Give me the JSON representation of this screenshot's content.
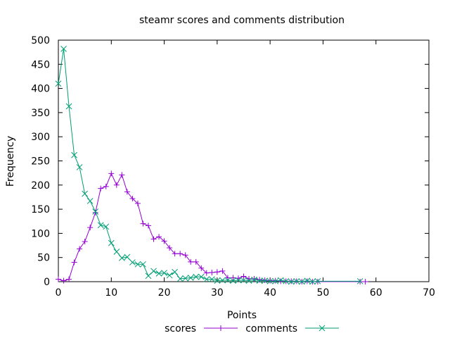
{
  "chart_data": {
    "type": "line",
    "title": "steamr scores and comments distribution",
    "xlabel": "Points",
    "ylabel": "Frequency",
    "xlim": [
      0,
      70
    ],
    "ylim": [
      0,
      500
    ],
    "xticks": [
      0,
      10,
      20,
      30,
      40,
      50,
      60,
      70
    ],
    "yticks": [
      0,
      50,
      100,
      150,
      200,
      250,
      300,
      350,
      400,
      450,
      500
    ],
    "grid": false,
    "legend_position": "bottom-center",
    "series": [
      {
        "name": "scores",
        "color": "#9400d3",
        "marker": "plus",
        "points": [
          [
            0,
            5
          ],
          [
            1,
            2
          ],
          [
            2,
            5
          ],
          [
            3,
            40
          ],
          [
            4,
            68
          ],
          [
            5,
            83
          ],
          [
            6,
            112
          ],
          [
            7,
            143
          ],
          [
            8,
            193
          ],
          [
            9,
            197
          ],
          [
            10,
            224
          ],
          [
            11,
            200
          ],
          [
            12,
            221
          ],
          [
            13,
            186
          ],
          [
            14,
            172
          ],
          [
            15,
            162
          ],
          [
            16,
            120
          ],
          [
            17,
            116
          ],
          [
            18,
            88
          ],
          [
            19,
            93
          ],
          [
            20,
            84
          ],
          [
            21,
            70
          ],
          [
            22,
            58
          ],
          [
            23,
            58
          ],
          [
            24,
            55
          ],
          [
            25,
            41
          ],
          [
            26,
            41
          ],
          [
            27,
            28
          ],
          [
            28,
            18
          ],
          [
            29,
            19
          ],
          [
            30,
            20
          ],
          [
            31,
            22
          ],
          [
            32,
            8
          ],
          [
            33,
            8
          ],
          [
            34,
            7
          ],
          [
            35,
            11
          ],
          [
            36,
            6
          ],
          [
            37,
            6
          ],
          [
            38,
            4
          ],
          [
            39,
            3
          ],
          [
            40,
            2
          ],
          [
            41,
            2
          ],
          [
            42,
            1
          ],
          [
            43,
            1
          ],
          [
            44,
            1
          ],
          [
            45,
            1
          ],
          [
            46,
            0
          ],
          [
            47,
            1
          ],
          [
            48,
            0
          ],
          [
            49,
            0
          ],
          [
            57,
            0
          ],
          [
            58,
            0
          ]
        ]
      },
      {
        "name": "comments",
        "color": "#009e73",
        "marker": "cross",
        "points": [
          [
            0,
            410
          ],
          [
            1,
            482
          ],
          [
            2,
            363
          ],
          [
            3,
            262
          ],
          [
            4,
            237
          ],
          [
            5,
            182
          ],
          [
            6,
            167
          ],
          [
            7,
            145
          ],
          [
            8,
            117
          ],
          [
            9,
            114
          ],
          [
            10,
            80
          ],
          [
            11,
            62
          ],
          [
            12,
            49
          ],
          [
            13,
            51
          ],
          [
            14,
            40
          ],
          [
            15,
            36
          ],
          [
            16,
            36
          ],
          [
            17,
            12
          ],
          [
            18,
            22
          ],
          [
            19,
            17
          ],
          [
            20,
            18
          ],
          [
            21,
            13
          ],
          [
            22,
            20
          ],
          [
            23,
            6
          ],
          [
            24,
            7
          ],
          [
            25,
            8
          ],
          [
            26,
            10
          ],
          [
            27,
            10
          ],
          [
            28,
            5
          ],
          [
            29,
            5
          ],
          [
            30,
            2
          ],
          [
            31,
            3
          ],
          [
            32,
            3
          ],
          [
            33,
            2
          ],
          [
            34,
            3
          ],
          [
            35,
            3
          ],
          [
            36,
            2
          ],
          [
            37,
            4
          ],
          [
            38,
            2
          ],
          [
            39,
            2
          ],
          [
            40,
            1
          ],
          [
            41,
            1
          ],
          [
            42,
            3
          ],
          [
            43,
            1
          ],
          [
            44,
            0
          ],
          [
            45,
            1
          ],
          [
            46,
            0
          ],
          [
            47,
            2
          ],
          [
            48,
            0
          ],
          [
            49,
            1
          ],
          [
            57,
            1
          ]
        ]
      }
    ]
  }
}
